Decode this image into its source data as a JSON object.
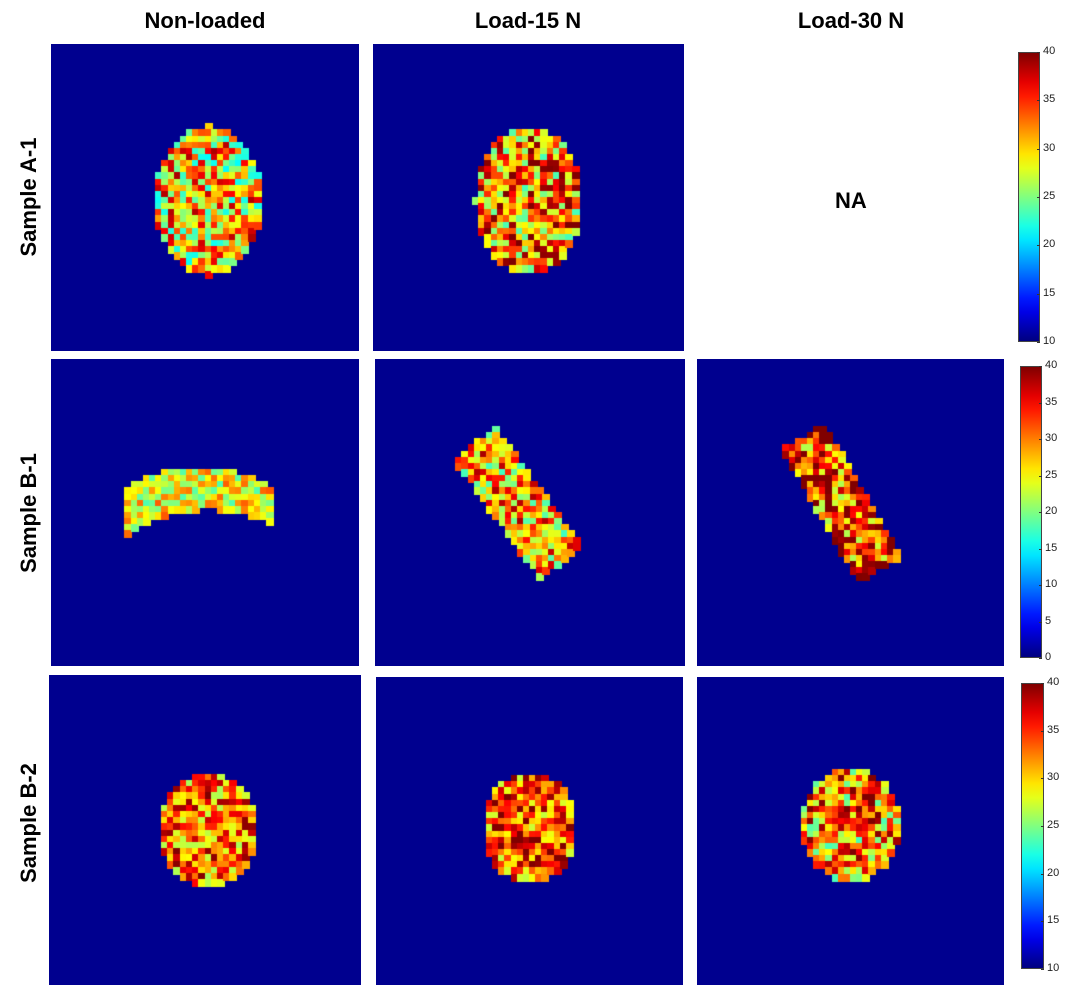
{
  "column_titles": [
    "Non-loaded",
    "Load-15 N",
    "Load-30 N"
  ],
  "row_titles": [
    "Sample A-1",
    "Sample B-1",
    "Sample B-2"
  ],
  "na_label": "NA",
  "colors": {
    "background_map": "#00008f",
    "colormap": "jet"
  },
  "chart_data": [
    {
      "type": "heatmap",
      "sample": "Sample A-1",
      "panels": [
        {
          "condition": "Non-loaded",
          "shape": "oval",
          "mean_value": 30,
          "range": [
            15,
            40
          ]
        },
        {
          "condition": "Load-15 N",
          "shape": "oval",
          "mean_value": 32,
          "range": [
            15,
            40
          ]
        },
        {
          "condition": "Load-30 N",
          "shape": "none",
          "note": "NA"
        }
      ],
      "colorbar": {
        "min": 10,
        "max": 40,
        "ticks": [
          10,
          15,
          20,
          25,
          30,
          35,
          40
        ]
      }
    },
    {
      "type": "heatmap",
      "sample": "Sample B-1",
      "panels": [
        {
          "condition": "Non-loaded",
          "shape": "kidney",
          "mean_value": 25,
          "range": [
            15,
            35
          ]
        },
        {
          "condition": "Load-15 N",
          "shape": "tilted-band",
          "mean_value": 28,
          "range": [
            10,
            40
          ]
        },
        {
          "condition": "Load-30 N",
          "shape": "tilted-band",
          "mean_value": 32,
          "range": [
            10,
            40
          ]
        }
      ],
      "colorbar": {
        "min": 0,
        "max": 40,
        "ticks": [
          0,
          5,
          10,
          15,
          20,
          25,
          30,
          35,
          40
        ]
      }
    },
    {
      "type": "heatmap",
      "sample": "Sample B-2",
      "panels": [
        {
          "condition": "Non-loaded",
          "shape": "round",
          "mean_value": 33,
          "range": [
            20,
            40
          ]
        },
        {
          "condition": "Load-15 N",
          "shape": "round",
          "mean_value": 34,
          "range": [
            20,
            40
          ]
        },
        {
          "condition": "Load-30 N",
          "shape": "round",
          "mean_value": 32,
          "range": [
            15,
            40
          ]
        }
      ],
      "colorbar": {
        "min": 10,
        "max": 40,
        "ticks": [
          10,
          15,
          20,
          25,
          30,
          35,
          40
        ]
      }
    }
  ]
}
